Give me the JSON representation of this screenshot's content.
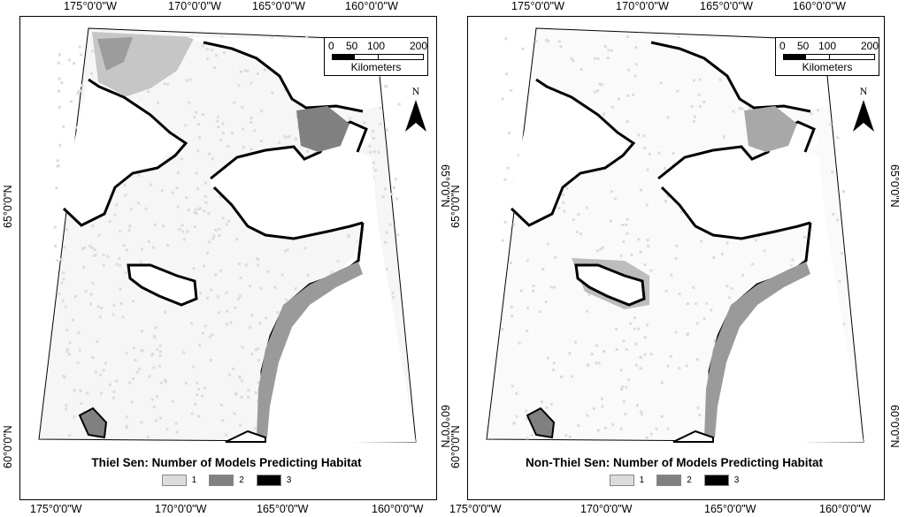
{
  "panels": [
    {
      "id": "left",
      "title": "Thiel Sen: Number of Models Predicting Habitat",
      "top_ticks": [
        "175°0'0\"W",
        "170°0'0\"W",
        "165°0'0\"W",
        "160°0'0\"W"
      ],
      "bottom_ticks": [
        "175°0'0\"W",
        "170°0'0\"W",
        "165°0'0\"W",
        "160°0'0\"W"
      ],
      "left_ticks": [
        "65°0'0\"N",
        "60°0'0\"N"
      ],
      "right_ticks": [
        "65°0'0\"N",
        "60°0'0\"N"
      ]
    },
    {
      "id": "right",
      "title": "Non-Thiel Sen: Number of Models Predicting Habitat",
      "top_ticks": [
        "175°0'0\"W",
        "170°0'0\"W",
        "165°0'0\"W",
        "160°0'0\"W"
      ],
      "bottom_ticks": [
        "175°0'0\"W",
        "170°0'0\"W",
        "165°0'0\"W",
        "160°0'0\"W"
      ],
      "left_ticks": [
        "65°0'0\"N",
        "60°0'0\"N"
      ],
      "right_ticks": [
        "65°0'0\"N",
        "60°0'0\"N"
      ]
    }
  ],
  "legend": [
    {
      "label": "1",
      "color": "#dcdcdc"
    },
    {
      "label": "2",
      "color": "#808080"
    },
    {
      "label": "3",
      "color": "#000000"
    }
  ],
  "scalebar": {
    "labels": [
      "0",
      "50",
      "100",
      "200"
    ],
    "unit": "Kilometers"
  },
  "north_arrow": {
    "label": "N",
    "icon": "north-arrow-icon"
  },
  "colors": {
    "land": "#ffffff",
    "sea_low": "#dcdcdc",
    "sea_mid": "#808080",
    "coast_high": "#000000"
  }
}
